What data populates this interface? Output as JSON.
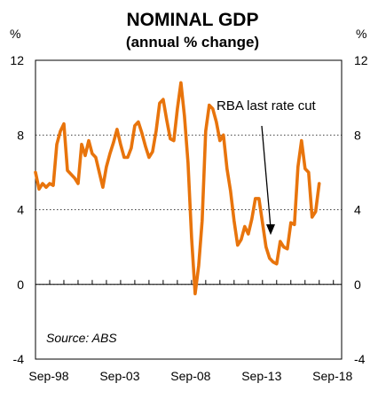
{
  "chart_data": {
    "type": "line",
    "title": "NOMINAL GDP",
    "subtitle": "(annual % change)",
    "ylabel_left": "%",
    "ylabel_right": "%",
    "ylim": [
      -4,
      12
    ],
    "yticks": [
      "12",
      "8",
      "4",
      "0",
      "-4"
    ],
    "ytick_values": [
      12,
      8,
      4,
      0,
      -4
    ],
    "xlim": [
      1998.67,
      2020.25
    ],
    "xtick_labels": [
      "Sep-98",
      "Sep-03",
      "Sep-08",
      "Sep-13",
      "Sep-18"
    ],
    "xtick_values": [
      1998.67,
      2003.67,
      2008.67,
      2013.67,
      2018.67
    ],
    "grid": "horizontal dotted",
    "series_color": "#E8740C",
    "series": [
      {
        "x": [
          1998.67,
          1998.92,
          1999.17,
          1999.42,
          1999.67,
          1999.92,
          2000.17,
          2000.42,
          2000.67,
          2000.92,
          2001.17,
          2001.42,
          2001.67,
          2001.92,
          2002.17,
          2002.42,
          2002.67,
          2002.92,
          2003.17,
          2003.42,
          2003.67,
          2003.92,
          2004.17,
          2004.42,
          2004.67,
          2004.92,
          2005.17,
          2005.42,
          2005.67,
          2005.92,
          2006.17,
          2006.42,
          2006.67,
          2006.92,
          2007.17,
          2007.42,
          2007.67,
          2007.92,
          2008.17,
          2008.42,
          2008.67,
          2008.92,
          2009.17,
          2009.42,
          2009.67,
          2009.92,
          2010.17,
          2010.42,
          2010.67,
          2010.92,
          2011.17,
          2011.42,
          2011.67,
          2011.92,
          2012.17,
          2012.42,
          2012.67,
          2012.92,
          2013.17,
          2013.42,
          2013.67,
          2013.92,
          2014.17,
          2014.42,
          2014.67,
          2014.92,
          2015.17,
          2015.42,
          2015.67,
          2015.92,
          2016.17,
          2016.42,
          2016.67,
          2016.92,
          2017.17,
          2017.42,
          2017.67,
          2017.92,
          2018.17,
          2018.42,
          2018.67
        ],
        "values": [
          6.0,
          5.1,
          5.4,
          5.2,
          5.4,
          5.3,
          7.5,
          8.2,
          8.6,
          6.1,
          5.9,
          5.7,
          5.4,
          7.5,
          6.9,
          7.7,
          7.0,
          6.8,
          6.0,
          5.2,
          6.3,
          7.0,
          7.6,
          8.3,
          7.5,
          6.8,
          6.8,
          7.3,
          8.5,
          8.7,
          8.1,
          7.4,
          6.8,
          7.1,
          8.2,
          9.7,
          9.9,
          8.8,
          7.8,
          7.7,
          9.4,
          10.8,
          9.0,
          6.5,
          2.5,
          -0.5,
          1.0,
          3.4,
          8.2,
          9.6,
          9.4,
          8.7,
          7.7,
          8.0,
          6.2,
          5.0,
          3.4,
          2.1,
          2.4,
          3.1,
          2.7,
          3.5,
          4.6,
          4.6,
          3.3,
          2.0,
          1.4,
          1.2,
          1.1,
          2.3,
          2.0,
          1.9,
          3.3,
          3.2,
          6.3,
          7.7,
          6.2,
          6.0,
          3.6,
          3.9,
          5.4
        ]
      }
    ],
    "annotations": [
      "RBA last rate cut",
      "Source: ABS"
    ],
    "annotation_arrow_target": {
      "x": 2016.33,
      "y": 2.4
    }
  }
}
